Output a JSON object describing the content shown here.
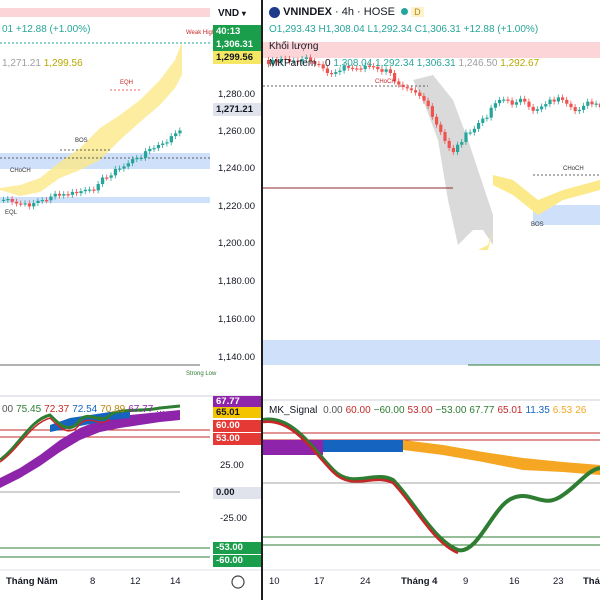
{
  "left_chart": {
    "currency": "VND",
    "legend_change": "+12.88 (+1.00%)",
    "legend_o_prefix": "01",
    "legend_values": [
      "1,271.21",
      "1,299.56"
    ],
    "tags": {
      "countdown": "40:13",
      "last": "1,306.31",
      "ma": "1,299.56",
      "prev": "1,271.21"
    },
    "y_ticks": [
      "1,280.00",
      "1,260.00",
      "1,240.00",
      "1,220.00",
      "1,200.00",
      "1,180.00",
      "1,160.00",
      "1,140.00"
    ],
    "annotations": {
      "eqh": "EQH",
      "bos": "BOS",
      "choch": "CHoCH",
      "eql": "EQL",
      "weak_high": "Weak High",
      "strong_low": "Strong Low"
    },
    "indicator_values": [
      "00",
      "75.45",
      "72.37",
      "72.54",
      "70.89",
      "67.77",
      "..."
    ],
    "indicator_ticks": [
      "25.00",
      "0.00",
      "-25.00"
    ],
    "indicator_tags": [
      "67.77",
      "65.01",
      "60.00",
      "53.00",
      "-53.00",
      "-60.00"
    ],
    "x_labels": [
      "Tháng Năm",
      "8",
      "12",
      "14"
    ]
  },
  "right_chart": {
    "symbol": "VNINDEX",
    "timeframe": "4h",
    "exchange": "HOSE",
    "badge": "D",
    "ohlc": {
      "o": "O1,293.43",
      "h": "H1,308.04",
      "l": "L1,292.34",
      "c": "C1,306.31",
      "change": "+12.88 (+1.00%)"
    },
    "volume_label": "Khối lượng",
    "mkpartem": {
      "name": "MKPartem",
      "flag": "0",
      "values": [
        "1,308.04",
        "1,292.34",
        "1,306.31",
        "1,246.50",
        "1,292.67"
      ]
    },
    "signal": {
      "name": "MK_Signal",
      "values": [
        "0.00",
        "60.00",
        "−60.00",
        "53.00",
        "−53.00",
        "67.77",
        "65.01",
        "11.35",
        "6.53",
        "26"
      ]
    },
    "annotations": {
      "choch": "CHoCH",
      "bos": "BOS",
      "choch2": "CHoCH"
    },
    "x_labels": [
      "10",
      "17",
      "24",
      "Tháng 4",
      "9",
      "16",
      "23",
      "Thá"
    ]
  },
  "colors": {
    "bull": "#26a69a",
    "bear": "#ef5350",
    "tag_green": "#1a9e4b",
    "tag_yellow": "#f5e663",
    "tag_red": "#e53935"
  }
}
